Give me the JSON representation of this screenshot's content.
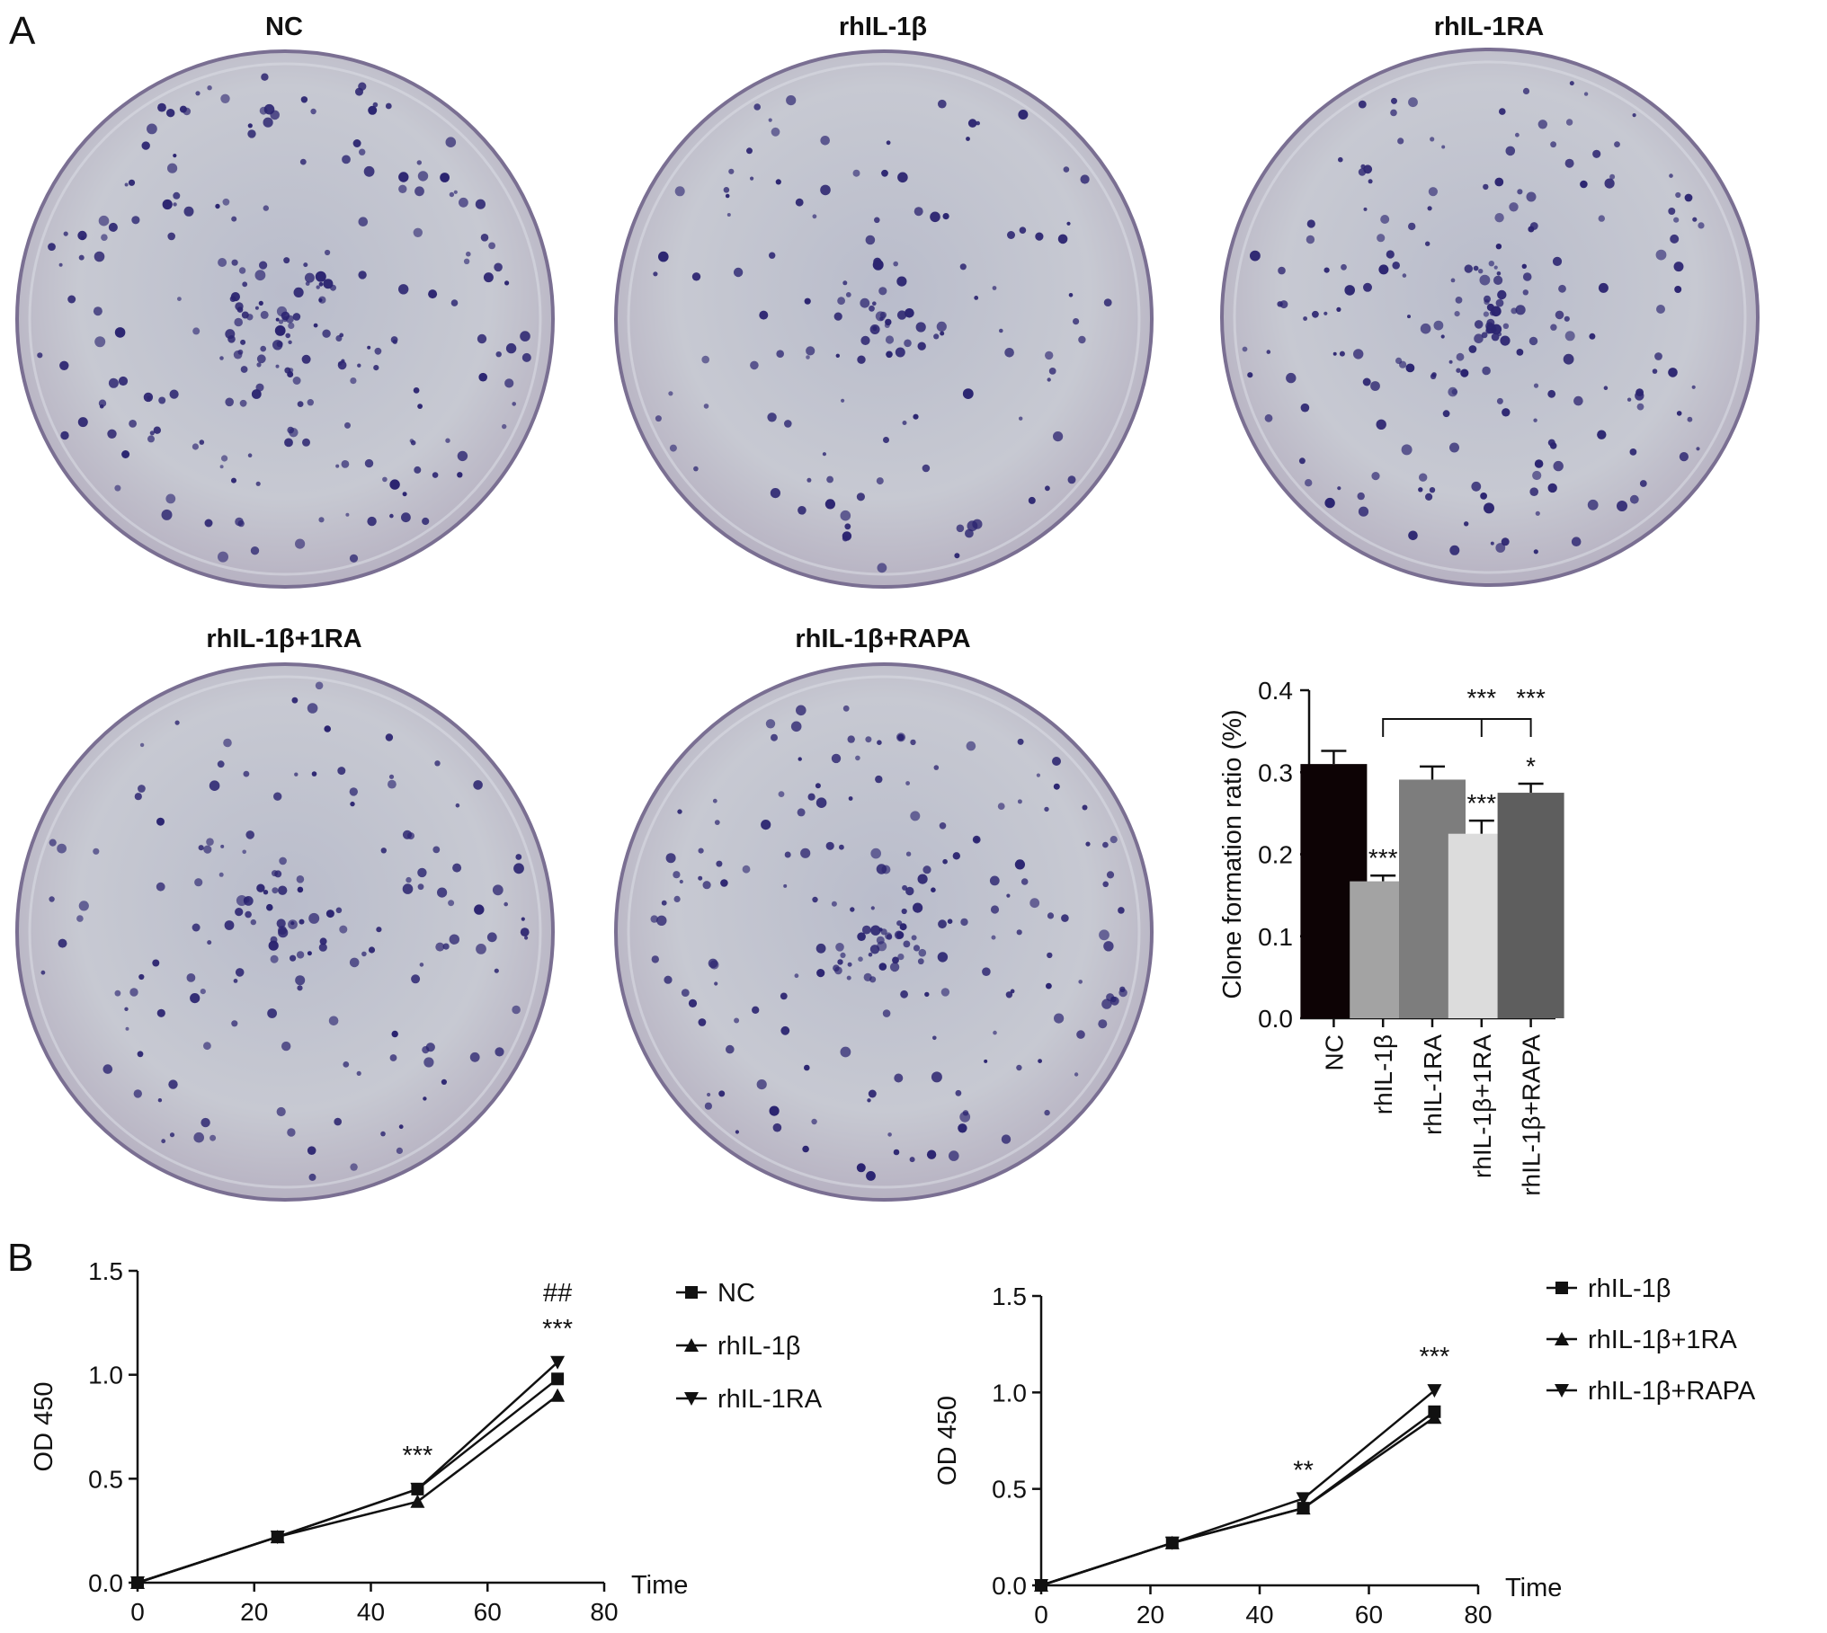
{
  "panels": {
    "a": "A",
    "b": "B"
  },
  "plates": [
    {
      "label": "NC",
      "colonies": 230
    },
    {
      "label": "rhIL-1β",
      "colonies": 130
    },
    {
      "label": "rhIL-1RA",
      "colonies": 210
    },
    {
      "label": "rhIL-1β+1RA",
      "colonies": 160
    },
    {
      "label": "rhIL-1β+RAPA",
      "colonies": 200
    }
  ],
  "colors": {
    "plate_bg": "#c7c9d2",
    "colony": "#2b2470",
    "rim": "#7a6f92"
  },
  "chart_data": [
    {
      "type": "bar",
      "ylabel": "Clone formation ratio (%)",
      "ylim": [
        0,
        0.4
      ],
      "yticks": [
        "0.0",
        "0.1",
        "0.2",
        "0.3",
        "0.4"
      ],
      "categories": [
        "NC",
        "rhIL-1β",
        "rhIL-1RA",
        "rhIL-1β+1RA",
        "rhIL-1β+RAPA"
      ],
      "values": [
        0.31,
        0.167,
        0.291,
        0.225,
        0.275
      ],
      "errors": [
        0.016,
        0.007,
        0.016,
        0.016,
        0.011
      ],
      "colors": [
        "#0d0305",
        "#a3a3a3",
        "#7d7d7d",
        "#dcdcdc",
        "#5e5e5e"
      ],
      "bar_annotations": [
        "",
        "***",
        "",
        "***",
        "*"
      ],
      "bracket_annotations": [
        "***",
        "***"
      ]
    },
    {
      "type": "line",
      "xlabel": "Time",
      "ylabel": "OD 450",
      "xlim": [
        0,
        80
      ],
      "ylim": [
        0,
        1.5
      ],
      "xticks": [
        "0",
        "20",
        "40",
        "60",
        "80"
      ],
      "yticks": [
        "0.0",
        "0.5",
        "1.0",
        "1.5"
      ],
      "x": [
        0,
        24,
        48,
        72
      ],
      "series": [
        {
          "name": "NC",
          "marker": "square",
          "values": [
            0,
            0.22,
            0.45,
            0.98
          ]
        },
        {
          "name": "rhIL-1β",
          "marker": "triangle-up",
          "values": [
            0,
            0.22,
            0.39,
            0.9
          ]
        },
        {
          "name": "rhIL-1RA",
          "marker": "triangle-down",
          "values": [
            0,
            0.22,
            0.45,
            1.06
          ]
        }
      ],
      "annotations": [
        {
          "x": 48,
          "text": "***"
        },
        {
          "x": 72,
          "text": "***"
        },
        {
          "x": 72,
          "text": "##"
        }
      ]
    },
    {
      "type": "line",
      "xlabel": "Time",
      "ylabel": "OD 450",
      "xlim": [
        0,
        80
      ],
      "ylim": [
        0,
        1.5
      ],
      "xticks": [
        "0",
        "20",
        "40",
        "60",
        "80"
      ],
      "yticks": [
        "0.0",
        "0.5",
        "1.0",
        "1.5"
      ],
      "x": [
        0,
        24,
        48,
        72
      ],
      "series": [
        {
          "name": "rhIL-1β",
          "marker": "square",
          "values": [
            0,
            0.22,
            0.4,
            0.9
          ]
        },
        {
          "name": "rhIL-1β+1RA",
          "marker": "triangle-up",
          "values": [
            0,
            0.22,
            0.4,
            0.87
          ]
        },
        {
          "name": "rhIL-1β+RAPA",
          "marker": "triangle-down",
          "values": [
            0,
            0.22,
            0.45,
            1.01
          ]
        }
      ],
      "annotations": [
        {
          "x": 48,
          "text": "**"
        },
        {
          "x": 72,
          "text": "***"
        }
      ]
    }
  ]
}
